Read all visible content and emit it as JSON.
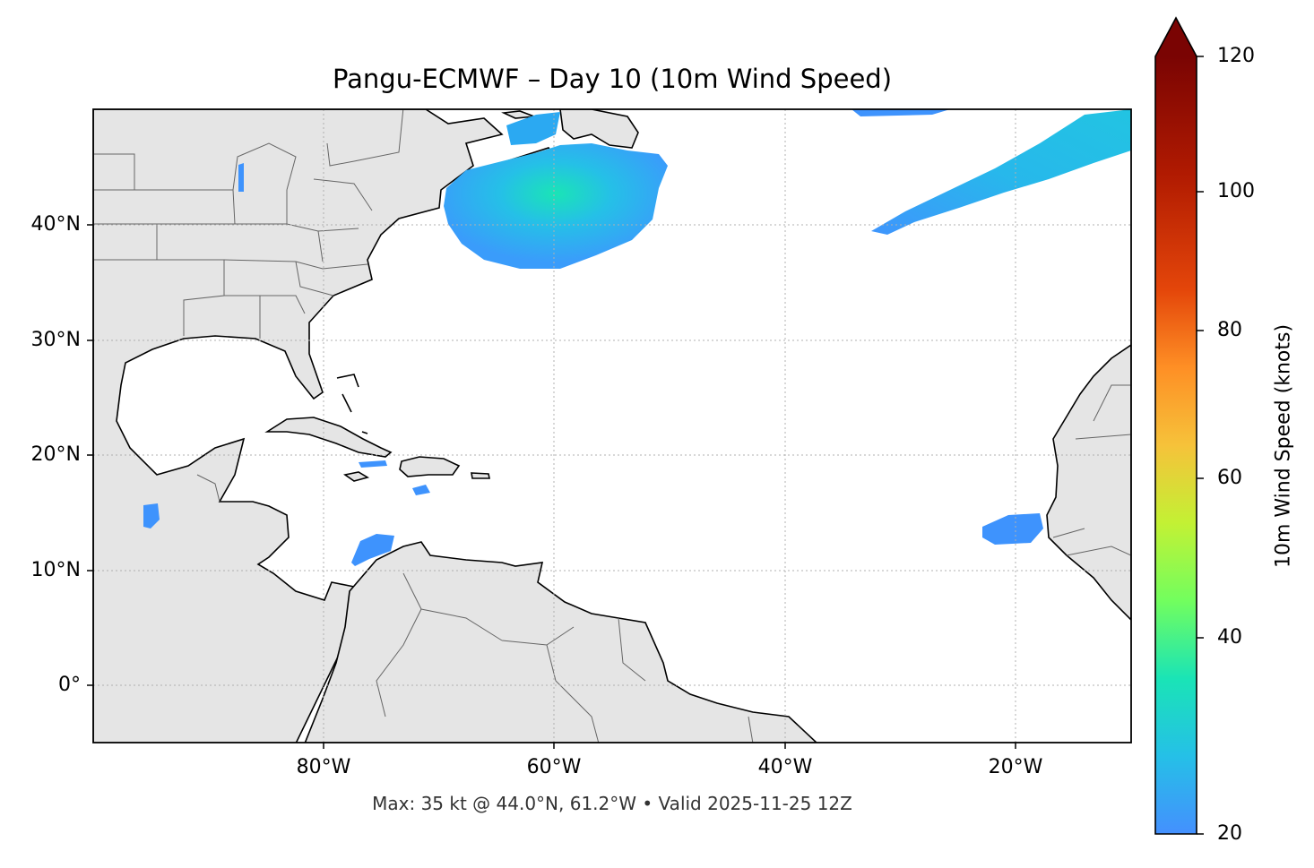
{
  "title": "Pangu-ECMWF – Day 10 (10m Wind Speed)",
  "footer": "Max: 35 kt @ 44.0°N, 61.2°W • Valid 2025-11-25 12Z",
  "map": {
    "projection": "PlateCarree",
    "lon_range": [
      -100,
      -10
    ],
    "lat_range": [
      -5,
      50
    ],
    "land_color": "#e5e5e5",
    "ocean_color": "#ffffff",
    "coastline_color": "#000000",
    "border_color": "#666666",
    "gridlines": "dotted gray"
  },
  "y_ticks": [
    {
      "label": "40°N"
    },
    {
      "label": "30°N"
    },
    {
      "label": "20°N"
    },
    {
      "label": "10°N"
    },
    {
      "label": "0°"
    }
  ],
  "x_ticks": [
    {
      "label": "80°W"
    },
    {
      "label": "60°W"
    },
    {
      "label": "40°W"
    },
    {
      "label": "20°W"
    }
  ],
  "colorbar": {
    "label": "10m Wind Speed (knots)",
    "min": 20,
    "max": 120,
    "extend": "max",
    "colormap": "turbo",
    "ticks": [
      "20",
      "40",
      "60",
      "80",
      "100",
      "120"
    ],
    "extend_color": "#7a0403"
  },
  "wind_features": [
    {
      "name": "nova-scotia-gale",
      "center_lat": 41.5,
      "center_lon": -61,
      "max_kt": 35
    },
    {
      "name": "north-atlantic-band",
      "from_lat": 39.5,
      "from_lon": -32,
      "to_lat": 48.5,
      "to_lon": -11,
      "kt": 27
    },
    {
      "name": "cape-verde-area",
      "center_lat": 13.5,
      "center_lon": -20.5,
      "kt": 22
    },
    {
      "name": "caribbean-south",
      "center_lat": 11.5,
      "center_lon": -76.5,
      "kt": 22
    },
    {
      "name": "pacific-gulf-tehuantepec",
      "center_lat": 14.5,
      "center_lon": -95,
      "kt": 21
    },
    {
      "name": "great-lakes-spot",
      "center_lat": 44.5,
      "center_lon": -87,
      "kt": 21
    }
  ]
}
